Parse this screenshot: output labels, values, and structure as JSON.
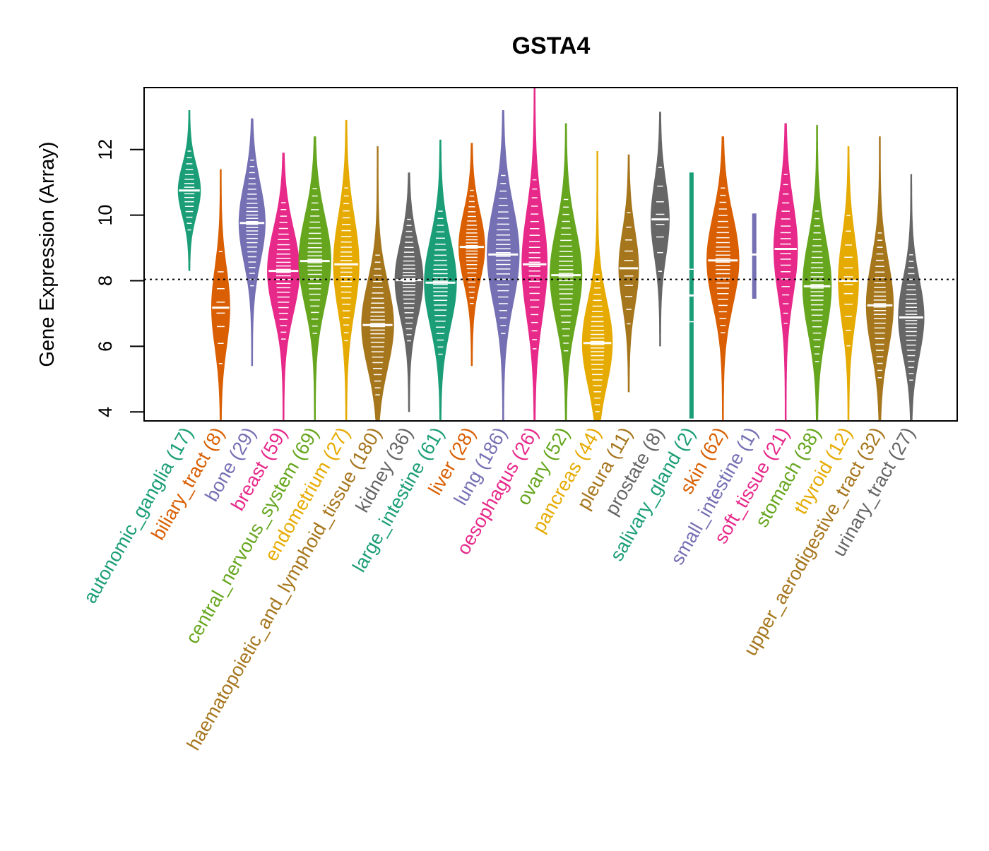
{
  "chart_data": {
    "type": "beanplot",
    "title": "GSTA4",
    "xlabel": "",
    "ylabel": "Gene Expression (Array)",
    "ylim": [
      3.7,
      13.85
    ],
    "yticks": [
      4,
      6,
      8,
      10,
      12
    ],
    "reference_line": 8.04,
    "grid": false,
    "palette": [
      "#1B9E77",
      "#D95F02",
      "#7570B3",
      "#E7298A",
      "#66A61E",
      "#E6AB02",
      "#A6761D",
      "#666666"
    ],
    "categories": [
      {
        "name": "autonomic_ganglia",
        "n": 17,
        "label": "autonomic_ganglia (17)",
        "median": 10.75,
        "min": 8.3,
        "max": 13.2
      },
      {
        "name": "biliary_tract",
        "n": 8,
        "label": "biliary_tract (8)",
        "median": 7.18,
        "min": 3.7,
        "max": 11.4
      },
      {
        "name": "bone",
        "n": 29,
        "label": "bone (29)",
        "median": 9.76,
        "min": 5.4,
        "max": 12.95
      },
      {
        "name": "breast",
        "n": 59,
        "label": "breast (59)",
        "median": 8.3,
        "min": 3.7,
        "max": 11.9
      },
      {
        "name": "central_nervous_system",
        "n": 69,
        "label": "central_nervous_system (69)",
        "median": 8.6,
        "min": 3.7,
        "max": 12.4
      },
      {
        "name": "endometrium",
        "n": 27,
        "label": "endometrium (27)",
        "median": 8.5,
        "min": 3.7,
        "max": 12.9
      },
      {
        "name": "haematopoietic_and_lymphoid_tissue",
        "n": 180,
        "label": "haematopoietic_and_lymphoid_tissue (180)",
        "median": 6.65,
        "min": 3.7,
        "max": 12.1
      },
      {
        "name": "kidney",
        "n": 36,
        "label": "kidney (36)",
        "median": 8.02,
        "min": 4.0,
        "max": 11.3
      },
      {
        "name": "large_intestine",
        "n": 61,
        "label": "large_intestine (61)",
        "median": 7.94,
        "min": 3.7,
        "max": 12.3
      },
      {
        "name": "liver",
        "n": 28,
        "label": "liver (28)",
        "median": 9.03,
        "min": 5.4,
        "max": 12.2
      },
      {
        "name": "lung",
        "n": 186,
        "label": "lung (186)",
        "median": 8.8,
        "min": 3.7,
        "max": 13.2
      },
      {
        "name": "oesophagus",
        "n": 26,
        "label": "oesophagus (26)",
        "median": 8.5,
        "min": 3.7,
        "max": 13.9
      },
      {
        "name": "ovary",
        "n": 52,
        "label": "ovary (52)",
        "median": 8.17,
        "min": 3.7,
        "max": 12.8
      },
      {
        "name": "pancreas",
        "n": 44,
        "label": "pancreas (44)",
        "median": 6.1,
        "min": 3.7,
        "max": 11.95
      },
      {
        "name": "pleura",
        "n": 11,
        "label": "pleura (11)",
        "median": 8.38,
        "min": 4.6,
        "max": 11.85
      },
      {
        "name": "prostate",
        "n": 8,
        "label": "prostate (8)",
        "median": 9.87,
        "min": 6.0,
        "max": 13.15
      },
      {
        "name": "salivary_gland",
        "n": 2,
        "label": "salivary_gland (2)",
        "median": 7.55,
        "min": 3.8,
        "max": 11.3
      },
      {
        "name": "skin",
        "n": 62,
        "label": "skin (62)",
        "median": 8.62,
        "min": 3.7,
        "max": 12.4
      },
      {
        "name": "small_intestine",
        "n": 1,
        "label": "small_intestine (1)",
        "median": 8.8,
        "min": 7.45,
        "max": 10.05
      },
      {
        "name": "soft_tissue",
        "n": 21,
        "label": "soft_tissue (21)",
        "median": 8.97,
        "min": 3.7,
        "max": 12.8
      },
      {
        "name": "stomach",
        "n": 38,
        "label": "stomach (38)",
        "median": 7.83,
        "min": 3.7,
        "max": 12.75
      },
      {
        "name": "thyroid",
        "n": 12,
        "label": "thyroid (12)",
        "median": 8.0,
        "min": 3.7,
        "max": 12.1
      },
      {
        "name": "upper_aerodigestive_tract",
        "n": 32,
        "label": "upper_aerodigestive_tract (32)",
        "median": 7.25,
        "min": 3.7,
        "max": 12.4
      },
      {
        "name": "urinary_tract",
        "n": 27,
        "label": "urinary_tract (27)",
        "median": 6.88,
        "min": 3.7,
        "max": 11.25
      }
    ]
  }
}
